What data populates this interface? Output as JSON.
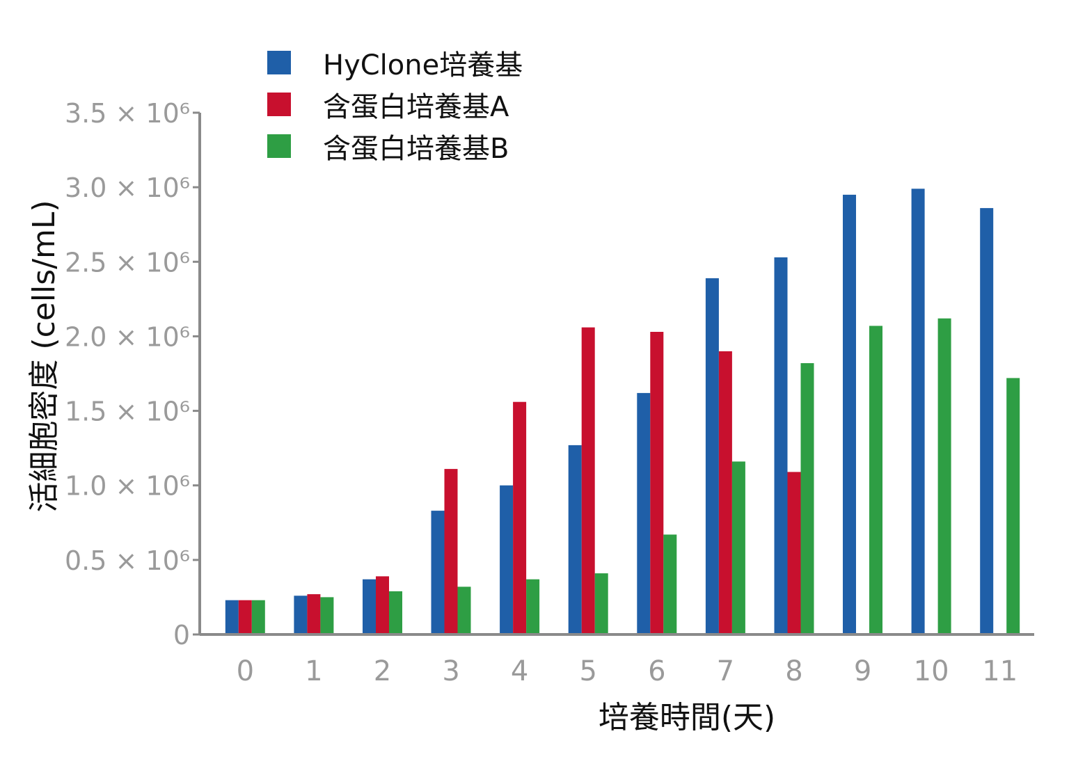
{
  "chart_data": {
    "type": "bar",
    "xlabel": "培養時間(天)",
    "ylabel": "活細胞密度 (cells/mL)",
    "categories": [
      "0",
      "1",
      "2",
      "3",
      "4",
      "5",
      "6",
      "7",
      "8",
      "9",
      "10",
      "11"
    ],
    "ylim": [
      0,
      3500000
    ],
    "y_ticks": [
      {
        "value": 0,
        "label": "0"
      },
      {
        "value": 500000,
        "label": "0.5 × 10⁶"
      },
      {
        "value": 1000000,
        "label": "1.0 × 10⁶"
      },
      {
        "value": 1500000,
        "label": "1.5 × 10⁶"
      },
      {
        "value": 2000000,
        "label": "2.0 × 10⁶"
      },
      {
        "value": 2500000,
        "label": "2.5 × 10⁶"
      },
      {
        "value": 3000000,
        "label": "3.0 × 10⁶"
      },
      {
        "value": 3500000,
        "label": "3.5 × 10⁶"
      }
    ],
    "series": [
      {
        "name": "HyClone培養基",
        "color": "#1f5fa8",
        "values": [
          230000,
          260000,
          370000,
          830000,
          1000000,
          1270000,
          1620000,
          2390000,
          2530000,
          2950000,
          2990000,
          2860000
        ]
      },
      {
        "name": "含蛋白培養基A",
        "color": "#c8102e",
        "values": [
          230000,
          270000,
          390000,
          1110000,
          1560000,
          2060000,
          2030000,
          1900000,
          1090000,
          null,
          null,
          null
        ]
      },
      {
        "name": "含蛋白培養基B",
        "color": "#2e9e44",
        "values": [
          230000,
          250000,
          290000,
          320000,
          370000,
          410000,
          670000,
          1160000,
          1820000,
          2070000,
          2120000,
          1720000
        ]
      }
    ],
    "legend_position": "top-left",
    "grid": false
  }
}
